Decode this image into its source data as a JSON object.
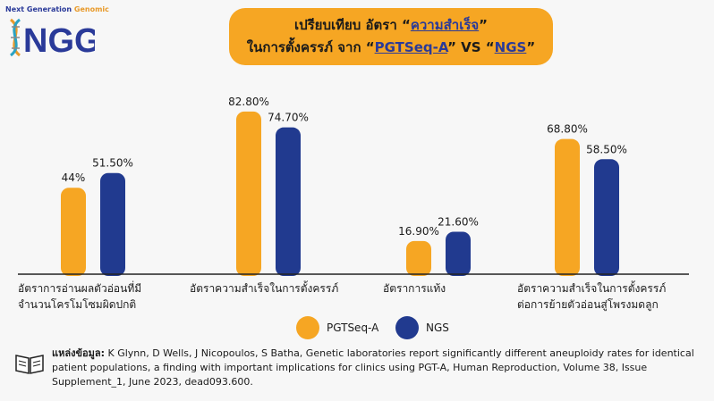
{
  "logo": {
    "tagline_part1": "Next Generation ",
    "tagline_part2": "Genomic",
    "letters": "NGG"
  },
  "title": {
    "line1_prefix": "เปรียบเทียบ อัตรา “",
    "line1_highlight": "ความสำเร็จ",
    "line1_suffix": "”",
    "line2_prefix": "ในการตั้งครรภ์  จาก “",
    "line2_highlight1": "PGTSeq-A",
    "line2_mid": "” VS “",
    "line2_highlight2": "NGS",
    "line2_suffix": "”"
  },
  "colors": {
    "pgtseq": "#f6a623",
    "ngs": "#213a8f",
    "title_bg": "#f6a623"
  },
  "chart_data": {
    "type": "bar",
    "categories": [
      [
        "อัตราการอ่านผลตัวอ่อนที่มี",
        "จำนวนโครโมโซมผิดปกติ"
      ],
      [
        "อัตราความสำเร็จในการตั้งครรภ์"
      ],
      [
        "อัตราการแท้ง"
      ],
      [
        "อัตราความสำเร็จในการตั้งครรภ์",
        "ต่อการย้ายตัวอ่อนสู่โพรงมดลูก"
      ]
    ],
    "series": [
      {
        "name": "PGTSeq-A",
        "values": [
          44,
          82.8,
          16.9,
          68.8
        ],
        "labels": [
          "44%",
          "82.80%",
          "16.90%",
          "68.80%"
        ]
      },
      {
        "name": "NGS",
        "values": [
          51.5,
          74.7,
          21.6,
          58.5
        ],
        "labels": [
          "51.50%",
          "74.70%",
          "21.60%",
          "58.50%"
        ]
      }
    ],
    "ylim": [
      0,
      100
    ],
    "legend_position": "bottom-center"
  },
  "source": {
    "label": "แหล่งข้อมูล:",
    "text": " K Glynn, D Wells, J Nicopoulos, S Batha, Genetic laboratories report significantly different aneuploidy rates for identical patient populations, a finding with important implications for clinics using PGT-A, Human Reproduction, Volume 38, Issue Supplement_1, June 2023, dead093.600."
  }
}
